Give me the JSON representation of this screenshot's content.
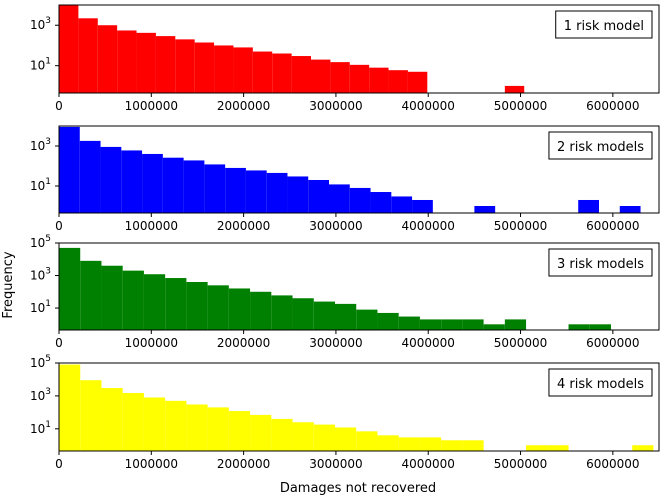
{
  "figure": {
    "ylabel": "Frequency",
    "xlabel": "Damages not recovered"
  },
  "chart_data": [
    {
      "type": "bar",
      "label": "1 risk model",
      "color": "#ff0000",
      "xlim": [
        0,
        6500000
      ],
      "ylim_exp": [
        -0.35,
        4.0
      ],
      "log_y": true,
      "x_ticks": [
        "0",
        "1000000",
        "2000000",
        "3000000",
        "4000000",
        "5000000",
        "6000000"
      ],
      "x_tick_values": [
        0,
        1000000,
        2000000,
        3000000,
        4000000,
        5000000,
        6000000
      ],
      "y_ticks": [
        {
          "base": "10",
          "exp": "1",
          "value": 10
        },
        {
          "base": "10",
          "exp": "3",
          "value": 1000
        }
      ],
      "bins_start": 0,
      "bin_width": 210000,
      "values": [
        10000,
        2200,
        1000,
        550,
        420,
        290,
        200,
        140,
        100,
        80,
        50,
        40,
        30,
        20,
        15,
        11,
        8,
        6,
        5,
        0,
        0,
        0,
        0,
        1,
        0,
        0,
        0,
        0,
        0,
        0
      ]
    },
    {
      "type": "bar",
      "label": "2 risk models",
      "color": "#0000ff",
      "xlim": [
        0,
        6500000
      ],
      "ylim_exp": [
        -0.35,
        4.0
      ],
      "log_y": true,
      "x_ticks": [
        "0",
        "1000000",
        "2000000",
        "3000000",
        "4000000",
        "5000000",
        "6000000"
      ],
      "x_tick_values": [
        0,
        1000000,
        2000000,
        3000000,
        4000000,
        5000000,
        6000000
      ],
      "y_ticks": [
        {
          "base": "10",
          "exp": "1",
          "value": 10
        },
        {
          "base": "10",
          "exp": "3",
          "value": 1000
        }
      ],
      "bins_start": 0,
      "bin_width": 225000,
      "values": [
        9000,
        1800,
        900,
        600,
        400,
        260,
        190,
        120,
        80,
        60,
        45,
        30,
        20,
        12,
        8,
        5,
        3,
        2,
        0,
        0,
        1,
        0,
        0,
        0,
        0,
        2,
        0,
        1,
        0,
        0
      ]
    },
    {
      "type": "bar",
      "label": "3 risk models",
      "color": "#008000",
      "xlim": [
        0,
        6500000
      ],
      "ylim_exp": [
        -0.35,
        5.0
      ],
      "log_y": true,
      "x_ticks": [
        "0",
        "1000000",
        "2000000",
        "3000000",
        "4000000",
        "5000000",
        "6000000"
      ],
      "x_tick_values": [
        0,
        1000000,
        2000000,
        3000000,
        4000000,
        5000000,
        6000000
      ],
      "y_ticks": [
        {
          "base": "10",
          "exp": "1",
          "value": 10
        },
        {
          "base": "10",
          "exp": "3",
          "value": 1000
        },
        {
          "base": "10",
          "exp": "5",
          "value": 100000
        }
      ],
      "bins_start": 0,
      "bin_width": 230000,
      "values": [
        50000,
        8000,
        4000,
        2000,
        1200,
        700,
        400,
        250,
        160,
        100,
        60,
        40,
        25,
        18,
        8,
        5,
        3,
        2,
        2,
        2,
        1,
        2,
        0,
        0,
        1,
        1,
        0,
        0,
        0
      ]
    },
    {
      "type": "bar",
      "label": "4 risk models",
      "color": "#ffff00",
      "xlim": [
        0,
        6500000
      ],
      "ylim_exp": [
        -0.35,
        5.0
      ],
      "log_y": true,
      "x_ticks": [
        "0",
        "1000000",
        "2000000",
        "3000000",
        "4000000",
        "5000000",
        "6000000"
      ],
      "x_tick_values": [
        0,
        1000000,
        2000000,
        3000000,
        4000000,
        5000000,
        6000000
      ],
      "y_ticks": [
        {
          "base": "10",
          "exp": "1",
          "value": 10
        },
        {
          "base": "10",
          "exp": "3",
          "value": 1000
        },
        {
          "base": "10",
          "exp": "5",
          "value": 100000
        }
      ],
      "bins_start": 0,
      "bin_width": 230000,
      "values": [
        80000,
        9000,
        3000,
        1500,
        800,
        500,
        300,
        200,
        120,
        70,
        40,
        25,
        18,
        12,
        7,
        4,
        3,
        3,
        2,
        2,
        0,
        0,
        1,
        1,
        0,
        0,
        0,
        1
      ]
    }
  ]
}
